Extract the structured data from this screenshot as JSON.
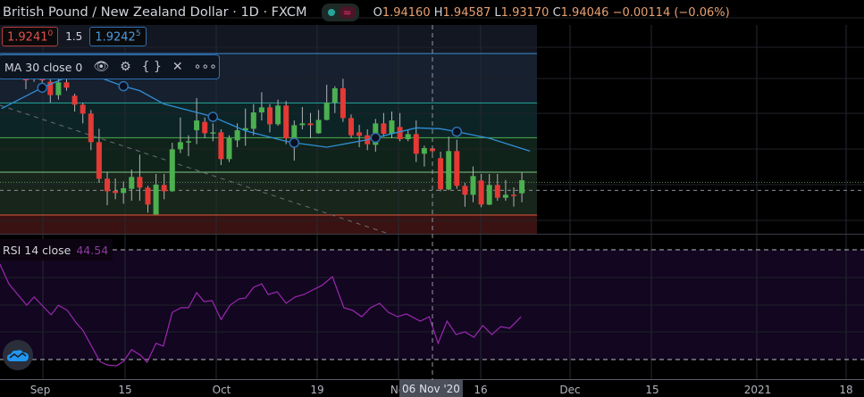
{
  "header": {
    "title": "British Pound / New Zealand Dollar · 1D · FXCM",
    "market_status": "≈",
    "ohlc": {
      "o_label": "O",
      "o": "1.94160",
      "h_label": "H",
      "h": "1.94587",
      "l_label": "L",
      "l": "1.93170",
      "c_label": "C",
      "c": "1.94046",
      "change": "−0.00114 (−0.06%)"
    }
  },
  "quotes": {
    "bid": "1.9241",
    "bid_sup": "0",
    "spread": "1.5",
    "ask": "1.9242",
    "ask_sup": "5"
  },
  "ma_legend": {
    "label": "MA 30 close 0",
    "icons": [
      "eye-icon",
      "gear-icon",
      "braces-icon",
      "close-icon",
      "more-icon"
    ],
    "eye": "👁",
    "gear": "⚙",
    "braces": "{ }",
    "close": "✕",
    "more": "∘∘∘"
  },
  "rsi_legend": {
    "label": "RSI 14 close",
    "value": "44.54"
  },
  "time_axis": {
    "labels": [
      {
        "text": "Sep",
        "x_date": "Sep"
      },
      {
        "text": "15"
      },
      {
        "text": "Oct"
      },
      {
        "text": "19"
      },
      {
        "text": "No"
      },
      {
        "text": "16"
      },
      {
        "text": "Dec"
      },
      {
        "text": "15"
      },
      {
        "text": "2021"
      },
      {
        "text": "18"
      }
    ],
    "crosshair_label": "06 Nov '20"
  },
  "colors": {
    "up": "#4caf50",
    "down": "#e53935",
    "ma": "#2f8fd8",
    "rsi": "#9c27b0"
  },
  "chart_data": {
    "type": "candlestick",
    "candles": [
      [
        1.9621,
        1.9631,
        1.9581,
        1.9611
      ],
      [
        1.9616,
        1.9631,
        1.9606,
        1.9621
      ],
      [
        1.9621,
        1.9631,
        1.9596,
        1.9611
      ],
      [
        1.9606,
        1.9621,
        1.9536,
        1.9561
      ],
      [
        1.9561,
        1.9616,
        1.9546,
        1.9604
      ],
      [
        1.9604,
        1.9616,
        1.9576,
        1.9586
      ],
      [
        1.9559,
        1.9566,
        1.9506,
        1.9529
      ],
      [
        1.9529,
        1.9536,
        1.9466,
        1.9499
      ],
      [
        1.9499,
        1.9511,
        1.9376,
        1.9403
      ],
      [
        1.9403,
        1.9448,
        1.9266,
        1.928
      ],
      [
        1.928,
        1.9301,
        1.9191,
        1.9238
      ],
      [
        1.9239,
        1.9281,
        1.9211,
        1.9232
      ],
      [
        1.9232,
        1.9271,
        1.9196,
        1.9248
      ],
      [
        1.9246,
        1.9311,
        1.9206,
        1.9286
      ],
      [
        1.9286,
        1.9361,
        1.9206,
        1.925
      ],
      [
        1.925,
        1.9256,
        1.9166,
        1.9193
      ],
      [
        1.916,
        1.9296,
        1.916,
        1.926
      ],
      [
        1.9259,
        1.9296,
        1.9211,
        1.9238
      ],
      [
        1.9238,
        1.9401,
        1.9236,
        1.9379
      ],
      [
        1.9379,
        1.9486,
        1.9366,
        1.9403
      ],
      [
        1.9402,
        1.9426,
        1.9356,
        1.9406
      ],
      [
        1.9443,
        1.9551,
        1.9396,
        1.9476
      ],
      [
        1.9471,
        1.9486,
        1.9416,
        1.9433
      ],
      [
        1.9433,
        1.9466,
        1.9406,
        1.9436
      ],
      [
        1.9436,
        1.9446,
        1.9326,
        1.9346
      ],
      [
        1.9346,
        1.9426,
        1.9336,
        1.9416
      ],
      [
        1.9409,
        1.9466,
        1.9386,
        1.9443
      ],
      [
        1.9443,
        1.9516,
        1.9391,
        1.945
      ],
      [
        1.9448,
        1.9531,
        1.9426,
        1.9503
      ],
      [
        1.9503,
        1.9571,
        1.9476,
        1.952
      ],
      [
        1.952,
        1.9531,
        1.9436,
        1.9463
      ],
      [
        1.9463,
        1.9546,
        1.9458,
        1.9526
      ],
      [
        1.9526,
        1.9541,
        1.9396,
        1.9416
      ],
      [
        1.9396,
        1.9476,
        1.9341,
        1.946
      ],
      [
        1.946,
        1.9521,
        1.9446,
        1.9466
      ],
      [
        1.9466,
        1.9501,
        1.9416,
        1.946
      ],
      [
        1.9433,
        1.9511,
        1.9431,
        1.9478
      ],
      [
        1.9478,
        1.9596,
        1.9476,
        1.9536
      ],
      [
        1.9536,
        1.9591,
        1.9501,
        1.9584
      ],
      [
        1.9584,
        1.9616,
        1.9471,
        1.9484
      ],
      [
        1.9484,
        1.9496,
        1.9416,
        1.9426
      ],
      [
        1.9436,
        1.9461,
        1.9386,
        1.9424
      ],
      [
        1.9426,
        1.9446,
        1.9376,
        1.9396
      ],
      [
        1.9394,
        1.9481,
        1.9371,
        1.9466
      ],
      [
        1.9466,
        1.9501,
        1.9421,
        1.9431
      ],
      [
        1.9431,
        1.9506,
        1.9416,
        1.9476
      ],
      [
        1.9454,
        1.9501,
        1.9406,
        1.9413
      ],
      [
        1.9413,
        1.9446,
        1.9406,
        1.943
      ],
      [
        1.943,
        1.9476,
        1.9336,
        1.9364
      ],
      [
        1.9364,
        1.9391,
        1.9321,
        1.9383
      ],
      [
        1.9382,
        1.9386,
        1.9366,
        1.9373
      ],
      [
        1.9349,
        1.9371,
        1.9238,
        1.9244
      ],
      [
        1.9244,
        1.9421,
        1.9241,
        1.9373
      ],
      [
        1.9373,
        1.9411,
        1.9246,
        1.9256
      ],
      [
        1.9256,
        1.9266,
        1.9186,
        1.9226
      ],
      [
        1.9226,
        1.9321,
        1.9201,
        1.9289
      ],
      [
        1.9274,
        1.9296,
        1.9184,
        1.9193
      ],
      [
        1.9193,
        1.9296,
        1.9191,
        1.9259
      ],
      [
        1.9259,
        1.9296,
        1.9206,
        1.9216
      ],
      [
        1.9216,
        1.9276,
        1.9206,
        1.9226
      ],
      [
        1.9226,
        1.9251,
        1.9186,
        1.9223
      ],
      [
        1.9231,
        1.9301,
        1.9201,
        1.9275
      ]
    ],
    "ma30": [
      [
        -3,
        1.9516
      ],
      [
        2,
        1.9586
      ],
      [
        5,
        1.9621
      ],
      [
        9,
        1.9621
      ],
      [
        12,
        1.9591
      ],
      [
        14,
        1.9576
      ],
      [
        17,
        1.9531
      ],
      [
        22,
        1.9496
      ],
      [
        23,
        1.9488
      ],
      [
        27,
        1.9441
      ],
      [
        32,
        1.9406
      ],
      [
        33,
        1.9401
      ],
      [
        37,
        1.9386
      ],
      [
        42,
        1.9411
      ],
      [
        43,
        1.9418
      ],
      [
        48,
        1.9451
      ],
      [
        51,
        1.9448
      ],
      [
        53,
        1.9438
      ],
      [
        57,
        1.9416
      ],
      [
        62,
        1.9373
      ]
    ],
    "ma_markers": [
      2,
      12,
      23,
      33,
      43,
      53
    ],
    "levels": [
      {
        "price": 1.9701,
        "color": "#3b8fd8"
      },
      {
        "price": 1.9535,
        "color": "#26a69a"
      },
      {
        "price": 1.9418,
        "color": "#4caf50"
      },
      {
        "price": 1.9302,
        "color": "#81c784"
      },
      {
        "price": 1.9158,
        "color": "#e0553a"
      }
    ],
    "bid_line": 1.9241,
    "last_line": 1.9268,
    "rsi": {
      "levels": [
        70,
        30
      ],
      "points": [
        [
          -3.2,
          64.8
        ],
        [
          -2.1,
          57.6
        ],
        [
          0.1,
          49.8
        ],
        [
          1,
          52.8
        ],
        [
          3.1,
          46.3
        ],
        [
          4,
          49.8
        ],
        [
          5.1,
          47.9
        ],
        [
          6.2,
          43.3
        ],
        [
          7,
          40.7
        ],
        [
          9.1,
          29.3
        ],
        [
          10,
          28
        ],
        [
          11.1,
          27.7
        ],
        [
          12,
          29.3
        ],
        [
          13,
          33.6
        ],
        [
          14.1,
          31.6
        ],
        [
          14.9,
          29
        ],
        [
          16,
          35.9
        ],
        [
          16.9,
          34.9
        ],
        [
          18,
          47.2
        ],
        [
          19.1,
          48.9
        ],
        [
          20,
          48.9
        ],
        [
          21,
          54.4
        ],
        [
          21.9,
          51.1
        ],
        [
          22.9,
          51.5
        ],
        [
          24,
          44.6
        ],
        [
          25.1,
          49.8
        ],
        [
          26.2,
          52.1
        ],
        [
          27,
          52.4
        ],
        [
          28,
          56.3
        ],
        [
          29,
          57.6
        ],
        [
          29.8,
          53.7
        ],
        [
          30.9,
          54.7
        ],
        [
          32,
          50.5
        ],
        [
          33.1,
          52.8
        ],
        [
          34.2,
          53.7
        ],
        [
          35.3,
          55.4
        ],
        [
          36.4,
          57
        ],
        [
          37.7,
          60.2
        ],
        [
          39.1,
          48.9
        ],
        [
          40.2,
          47.9
        ],
        [
          41.3,
          45.6
        ],
        [
          42.4,
          48.9
        ],
        [
          43.5,
          50.5
        ],
        [
          44.6,
          47.2
        ],
        [
          45.7,
          45.6
        ],
        [
          46.8,
          46.6
        ],
        [
          48.5,
          44
        ],
        [
          49.6,
          45.6
        ],
        [
          50.7,
          35.9
        ],
        [
          51.8,
          44
        ],
        [
          52.9,
          39.1
        ],
        [
          54,
          40.1
        ],
        [
          55.1,
          38.1
        ],
        [
          56.2,
          42.4
        ],
        [
          57.3,
          39.1
        ],
        [
          58.4,
          42
        ],
        [
          59.5,
          41.4
        ],
        [
          60.9,
          45.6
        ]
      ]
    }
  }
}
